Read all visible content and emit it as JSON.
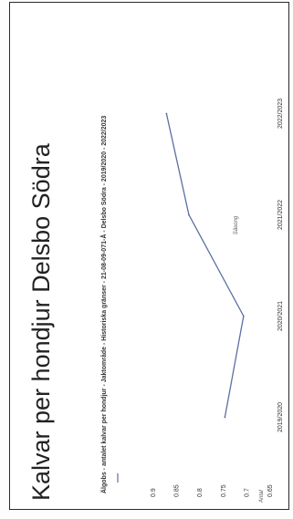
{
  "chart_data": {
    "type": "line",
    "title": "Kalvar per hondjur Delsbo Södra",
    "subtitle": "Älgobs - antalet kalvar per hondjur - Jaktområde - Historiska gränser - 21-08-09-071-Å - Delsbo Södra - 2019/2020 - 2022/2023",
    "xlabel": "Säsong",
    "ylabel": "Antal",
    "categories": [
      "2019/2020",
      "2020/2021",
      "2021/2022",
      "2022/2023"
    ],
    "series": [
      {
        "values": [
          0.745,
          0.705,
          0.822,
          0.87
        ]
      }
    ],
    "ylim": [
      0.65,
      0.9
    ],
    "yticks": [
      "0.9",
      "0.85",
      "0.8",
      "0.75",
      "0.7",
      "0.65"
    ],
    "legend": "top-left",
    "line_color": "#5a6fa0"
  }
}
